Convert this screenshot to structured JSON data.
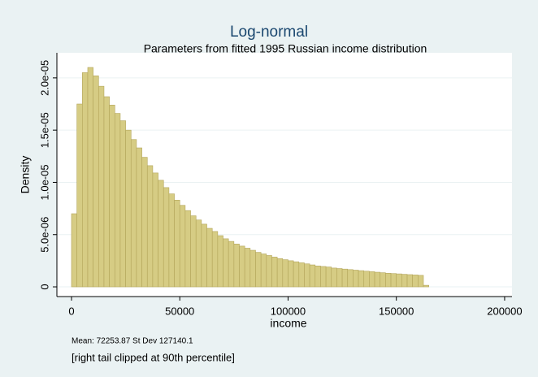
{
  "chart_data": {
    "type": "histogram",
    "title": "Log-normal",
    "subtitle": "Parameters from fitted 1995 Russian income distribution",
    "x_label": "income",
    "y_label": "Density",
    "notes": [
      "Mean: 72253.87 St Dev 127140.1",
      "[right tail clipped at 90th percentile]"
    ],
    "bins": [
      0,
      2500,
      5000,
      7500,
      10000,
      12500,
      15000,
      17500,
      20000,
      22500,
      25000,
      27500,
      30000,
      32500,
      35000,
      37500,
      40000,
      42500,
      45000,
      47500,
      50000,
      52500,
      55000,
      57500,
      60000,
      62500,
      65000,
      67500,
      70000,
      72500,
      75000,
      77500,
      80000,
      82500,
      85000,
      87500,
      90000,
      92500,
      95000,
      97500,
      100000,
      102500,
      105000,
      107500,
      110000,
      112500,
      115000,
      117500,
      120000,
      122500,
      125000,
      127500,
      130000,
      132500,
      135000,
      137500,
      140000,
      142500,
      145000,
      147500,
      150000,
      152500,
      155000,
      157500,
      160000,
      162500,
      165000
    ],
    "values": [
      7e-06,
      1.75e-05,
      2.05e-05,
      2.1e-05,
      2.02e-05,
      1.92e-05,
      1.82e-05,
      1.74e-05,
      1.66e-05,
      1.59e-05,
      1.5e-05,
      1.41e-05,
      1.33e-05,
      1.24e-05,
      1.16e-05,
      1.09e-05,
      1.02e-05,
      9.5e-06,
      8.9e-06,
      8.3e-06,
      7.8e-06,
      7.3e-06,
      6.8e-06,
      6.4e-06,
      6e-06,
      5.6e-06,
      5.3e-06,
      4.9e-06,
      4.6e-06,
      4.35e-06,
      4.1e-06,
      3.9e-06,
      3.7e-06,
      3.5e-06,
      3.3e-06,
      3.15e-06,
      3e-06,
      2.85e-06,
      2.7e-06,
      2.6e-06,
      2.5e-06,
      2.4e-06,
      2.3e-06,
      2.2e-06,
      2.1e-06,
      2e-06,
      1.95e-06,
      1.9e-06,
      1.8e-06,
      1.75e-06,
      1.7e-06,
      1.65e-06,
      1.6e-06,
      1.55e-06,
      1.5e-06,
      1.45e-06,
      1.4e-06,
      1.35e-06,
      1.3e-06,
      1.27e-06,
      1.24e-06,
      1.2e-06,
      1.17e-06,
      1.14e-06,
      1.1e-06,
      1.5e-07
    ],
    "color": "#d6cc84",
    "edge_color": "#b3a55a",
    "xlim": [
      -6750,
      203400
    ],
    "ylim": [
      -9.3e-07,
      2.24e-05
    ],
    "xticks": [
      0,
      50000,
      100000,
      150000,
      200000
    ],
    "yticks": [
      0,
      {
        "value": 5e-06,
        "label": "5.0e-06"
      },
      {
        "value": 1e-05,
        "label": "1.0e-05"
      },
      {
        "value": 1.5e-05,
        "label": "1.5e-05"
      },
      {
        "value": 2e-05,
        "label": "2.0e-05"
      }
    ],
    "grid": true
  }
}
